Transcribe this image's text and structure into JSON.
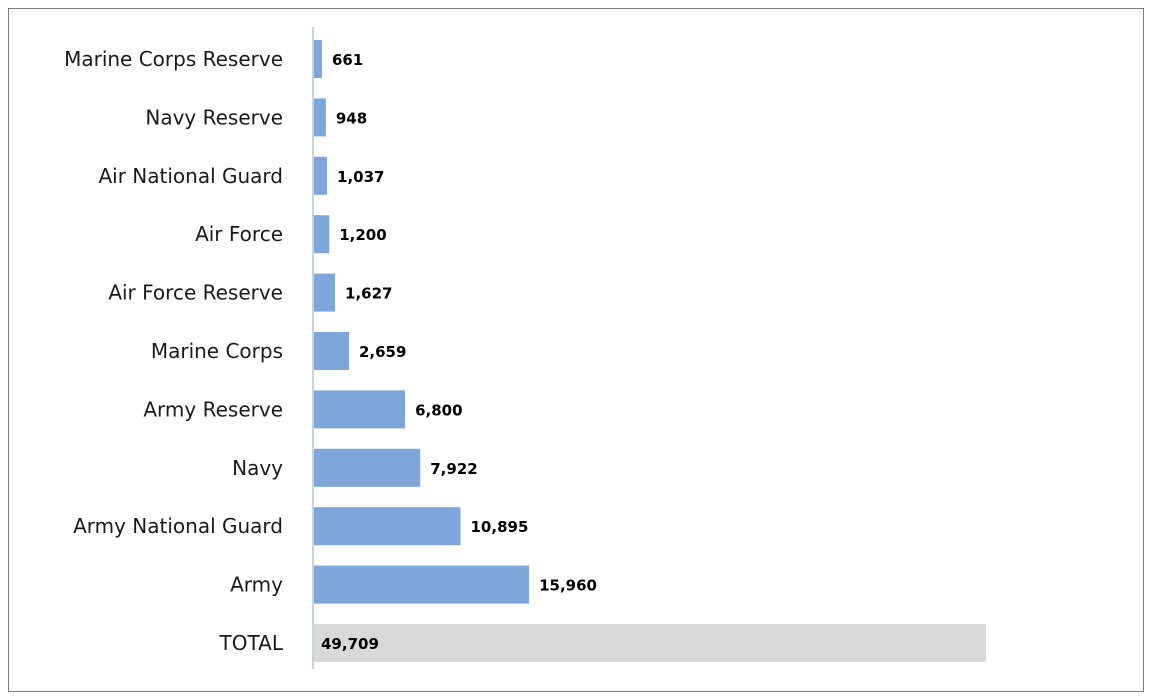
{
  "chart_data": {
    "type": "bar",
    "orientation": "horizontal",
    "categories": [
      "Marine Corps Reserve",
      "Navy Reserve",
      "Air National Guard",
      "Air Force",
      "Air Force Reserve",
      "Marine Corps",
      "Army Reserve",
      "Navy",
      "Army National Guard",
      "Army",
      "TOTAL"
    ],
    "values": [
      661,
      948,
      1037,
      1200,
      1627,
      2659,
      6800,
      7922,
      10895,
      15960,
      49709
    ],
    "value_labels": [
      "661",
      "948",
      "1,037",
      "1,200",
      "1,627",
      "2,659",
      "6,800",
      "7,922",
      "10,895",
      "15,960",
      "49,709"
    ],
    "colors": {
      "bar": "#7ea6d9",
      "total_bar": "#d9d9d9",
      "axis": "#c6d3e3",
      "frame": "#7f7f7f"
    },
    "title": "",
    "xlabel": "",
    "ylabel": "",
    "xlim": [
      0,
      49709
    ],
    "grid": false,
    "legend": "none"
  }
}
